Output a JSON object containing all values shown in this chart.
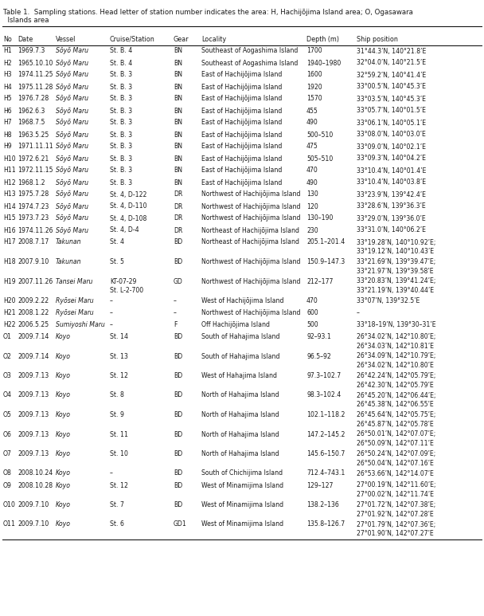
{
  "title": "Table 1.  Sampling stations. Head letter of station number indicates the area: H, Hachijōjima Island area; O, Ogasawara\n  Islands area",
  "columns": [
    "No",
    "Date",
    "Vessel",
    "Cruise/Station",
    "Gear",
    "Locality",
    "Depth (m)",
    "Ship position"
  ],
  "rows": [
    [
      "H1",
      "1969.7.3",
      "Sōyō Maru",
      "St. B. 4",
      "BN",
      "Southeast of Aogashima Island",
      "1700",
      "31°44.3’N, 140°21.8’E"
    ],
    [
      "H2",
      "1965.10.10",
      "Sōyō Maru",
      "St. B. 4",
      "BN",
      "Southeast of Aogashima Island",
      "1940–1980",
      "32°04.0’N, 140°21.5’E"
    ],
    [
      "H3",
      "1974.11.25",
      "Sōyō Maru",
      "St. B. 3",
      "BN",
      "East of Hachijōjima Island",
      "1600",
      "32°59.2’N, 140°41.4’E"
    ],
    [
      "H4",
      "1975.11.28",
      "Sōyō Maru",
      "St. B. 3",
      "BN",
      "East of Hachijōjima Island",
      "1920",
      "33°00.5’N, 140°45.3’E"
    ],
    [
      "H5",
      "1976.7.28",
      "Sōyō Maru",
      "St. B. 3",
      "BN",
      "East of Hachijōjima Island",
      "1570",
      "33°03.5’N, 140°45.3’E"
    ],
    [
      "H6",
      "1962.6.3",
      "Sōyō Maru",
      "St. B. 3",
      "BN",
      "East of Hachijōjima Island",
      "455",
      "33°05.7’N, 140°01.5’E"
    ],
    [
      "H7",
      "1968.7.5",
      "Sōyō Maru",
      "St. B. 3",
      "BN",
      "East of Hachijōjima Island",
      "490",
      "33°06.1’N, 140°05.1’E"
    ],
    [
      "H8",
      "1963.5.25",
      "Sōyō Maru",
      "St. B. 3",
      "BN",
      "East of Hachijōjima Island",
      "500–510",
      "33°08.0’N, 140°03.0’E"
    ],
    [
      "H9",
      "1971.11.11",
      "Sōyō Maru",
      "St. B. 3",
      "BN",
      "East of Hachijōjima Island",
      "475",
      "33°09.0’N, 140°02.1’E"
    ],
    [
      "H10",
      "1972.6.21",
      "Sōyō Maru",
      "St. B. 3",
      "BN",
      "East of Hachijōjima Island",
      "505–510",
      "33°09.3’N, 140°04.2’E"
    ],
    [
      "H11",
      "1972.11.15",
      "Sōyō Maru",
      "St. B. 3",
      "BN",
      "East of Hachijōjima Island",
      "470",
      "33°10.4’N, 140°01.4’E"
    ],
    [
      "H12",
      "1968.1.2",
      "Sōyō Maru",
      "St. B. 3",
      "BN",
      "East of Hachijōjima Island",
      "490",
      "33°10.4’N, 140°03.8’E"
    ],
    [
      "H13",
      "1975.7.28",
      "Sōyō Maru",
      "St. 4, D-122",
      "DR",
      "Northwest of Hachijōjima Island",
      "130",
      "33°23.9’N, 139°42.4’E"
    ],
    [
      "H14",
      "1974.7.23",
      "Sōyō Maru",
      "St. 4, D-110",
      "DR",
      "Northwest of Hachijōjima Island",
      "120",
      "33°28.6’N, 139°36.3’E"
    ],
    [
      "H15",
      "1973.7.23",
      "Sōyō Maru",
      "St. 4, D-108",
      "DR",
      "Northwest of Hachijōjima Island",
      "130–190",
      "33°29.0’N, 139°36.0’E"
    ],
    [
      "H16",
      "1974.11.26",
      "Sōyō Maru",
      "St. 4, D-4",
      "DR",
      "Northeast of Hachijōjima Island",
      "230",
      "33°31.0’N, 140°06.2’E"
    ],
    [
      "H17",
      "2008.7.17",
      "Takunan",
      "St. 4",
      "BD",
      "Northeast of Hachijōjima Island",
      "205.1–201.4",
      "33°19.28’N, 140°10.92’E;\n33°19.12’N, 140°10.43’E"
    ],
    [
      "H18",
      "2007.9.10",
      "Takunan",
      "St. 5",
      "BD",
      "Northwest of Hachijōjima Island",
      "150.9–147.3",
      "33°21.69’N, 139°39.47’E;\n33°21.97’N, 139°39.58’E"
    ],
    [
      "H19",
      "2007.11.26",
      "Tansei Maru",
      "KT-07-29\nSt. L-2-700",
      "GD",
      "Northwest of Hachijōjima Island",
      "212–177",
      "33°20.83’N, 139°41.24’E;\n33°21.19’N, 139°40.44’E"
    ],
    [
      "H20",
      "2009.2.22",
      "Ryōsei Maru",
      "–",
      "–",
      "West of Hachijōjima Island",
      "470",
      "33°07’N, 139°32.5’E"
    ],
    [
      "H21",
      "2008.1.22",
      "Ryōsei Maru",
      "–",
      "–",
      "Northwest of Hachijōjima Island",
      "600",
      "–"
    ],
    [
      "H22",
      "2006.5.25",
      "Sumiyoshi Maru",
      "–",
      "F",
      "Off Hachijōjima Island",
      "500",
      "33°18–19’N, 139°30–31’E"
    ],
    [
      "O1",
      "2009.7.14",
      "Koyo",
      "St. 14",
      "BD",
      "South of Hahajima Island",
      "92–93.1",
      "26°34.02’N, 142°10.80’E;\n26°34.03’N, 142°10.81’E"
    ],
    [
      "O2",
      "2009.7.14",
      "Koyo",
      "St. 13",
      "BD",
      "South of Hahajima Island",
      "96.5–92",
      "26°34.09’N, 142°10.79’E;\n26°34.02’N, 142°10.80’E"
    ],
    [
      "O3",
      "2009.7.13",
      "Koyo",
      "St. 12",
      "BD",
      "West of Hahajima Island",
      "97.3–102.7",
      "26°42.24’N, 142°05.79’E;\n26°42.30’N, 142°05.79’E"
    ],
    [
      "O4",
      "2009.7.13",
      "Koyo",
      "St. 8",
      "BD",
      "North of Hahajima Island",
      "98.3–102.4",
      "26°45.20’N, 142°06.44’E;\n26°45.38’N, 142°06.55’E"
    ],
    [
      "O5",
      "2009.7.13",
      "Koyo",
      "St. 9",
      "BD",
      "North of Hahajima Island",
      "102.1–118.2",
      "26°45.64’N, 142°05.75’E;\n26°45.87’N, 142°05.78’E"
    ],
    [
      "O6",
      "2009.7.13",
      "Koyo",
      "St. 11",
      "BD",
      "North of Hahajima Island",
      "147.2–145.2",
      "26°50.01’N, 142°07.07’E;\n26°50.09’N, 142°07.11’E"
    ],
    [
      "O7",
      "2009.7.13",
      "Koyo",
      "St. 10",
      "BD",
      "North of Hahajima Island",
      "145.6–150.7",
      "26°50.24’N, 142°07.09’E;\n26°50.04’N, 142°07.16’E"
    ],
    [
      "O8",
      "2008.10.24",
      "Koyo",
      "–",
      "BD",
      "South of Chichijima Island",
      "712.4–743.1",
      "26°53.66’N, 142°14.07’E"
    ],
    [
      "O9",
      "2008.10.28",
      "Koyo",
      "St. 12",
      "BD",
      "West of Minamijima Island",
      "129–127",
      "27°00.19’N, 142°11.60’E;\n27°00.02’N, 142°11.74’E"
    ],
    [
      "O10",
      "2009.7.10",
      "Koyo",
      "St. 7",
      "BD",
      "West of Minamijima Island",
      "138.2–136",
      "27°01.72’N, 142°07.38’E;\n27°01.92’N, 142°07.28’E"
    ],
    [
      "O11",
      "2009.7.10",
      "Koyo",
      "St. 6",
      "GD1",
      "West of Minamijima Island",
      "135.8–126.7",
      "27°01.79’N, 142°07.36’E;\n27°01.90’N, 142°07.27’E"
    ]
  ],
  "background_color": "#ffffff",
  "text_color": "#1a1a1a",
  "font_size": 5.6,
  "title_font_size": 6.2,
  "header_font_size": 5.8
}
